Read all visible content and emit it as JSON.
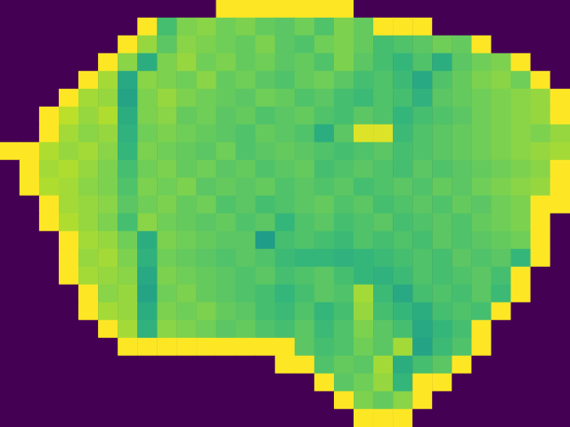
{
  "chart_data": {
    "type": "heatmap",
    "tick_labels": false,
    "color_range": [
      0,
      100
    ],
    "cells": [
      [
        0,
        0,
        0,
        0,
        0,
        0,
        0,
        0,
        0,
        0,
        0,
        100,
        100,
        100,
        100,
        100,
        100,
        100,
        0,
        0,
        0,
        0,
        0,
        0,
        0,
        0,
        0,
        0,
        0
      ],
      [
        0,
        0,
        0,
        0,
        0,
        0,
        0,
        100,
        70,
        80,
        82,
        78,
        80,
        76,
        74,
        78,
        72,
        80,
        76,
        100,
        100,
        100,
        0,
        0,
        0,
        0,
        0,
        0,
        0
      ],
      [
        0,
        0,
        0,
        0,
        0,
        0,
        100,
        84,
        74,
        82,
        80,
        78,
        76,
        80,
        74,
        72,
        78,
        80,
        76,
        70,
        72,
        74,
        78,
        76,
        100,
        0,
        0,
        0,
        0
      ],
      [
        0,
        0,
        0,
        0,
        0,
        100,
        82,
        62,
        80,
        84,
        78,
        80,
        76,
        78,
        74,
        76,
        72,
        80,
        74,
        70,
        66,
        72,
        62,
        74,
        78,
        80,
        100,
        0,
        0
      ],
      [
        0,
        0,
        0,
        0,
        100,
        86,
        60,
        82,
        80,
        78,
        82,
        76,
        78,
        74,
        72,
        76,
        78,
        74,
        70,
        72,
        68,
        60,
        72,
        76,
        80,
        82,
        78,
        100,
        0
      ],
      [
        0,
        0,
        0,
        100,
        86,
        84,
        58,
        80,
        84,
        80,
        78,
        76,
        74,
        78,
        76,
        72,
        74,
        70,
        68,
        72,
        70,
        64,
        74,
        76,
        78,
        80,
        82,
        84,
        100
      ],
      [
        0,
        0,
        100,
        90,
        84,
        88,
        62,
        80,
        82,
        76,
        78,
        74,
        76,
        72,
        74,
        76,
        72,
        70,
        74,
        72,
        66,
        70,
        72,
        74,
        78,
        80,
        82,
        84,
        100
      ],
      [
        0,
        0,
        100,
        86,
        82,
        84,
        64,
        78,
        80,
        78,
        76,
        74,
        72,
        76,
        74,
        72,
        62,
        74,
        95,
        95,
        68,
        72,
        74,
        76,
        78,
        80,
        82,
        80,
        84
      ],
      [
        100,
        100,
        88,
        84,
        86,
        82,
        66,
        80,
        78,
        76,
        74,
        78,
        72,
        74,
        76,
        74,
        72,
        70,
        72,
        74,
        70,
        72,
        74,
        76,
        78,
        80,
        82,
        84,
        86
      ],
      [
        0,
        100,
        86,
        88,
        84,
        80,
        70,
        78,
        80,
        76,
        78,
        74,
        76,
        72,
        74,
        76,
        70,
        72,
        74,
        72,
        70,
        74,
        72,
        74,
        76,
        78,
        80,
        82,
        100
      ],
      [
        0,
        100,
        88,
        86,
        82,
        80,
        72,
        80,
        78,
        80,
        74,
        76,
        74,
        76,
        72,
        74,
        72,
        74,
        70,
        72,
        74,
        72,
        76,
        74,
        78,
        80,
        82,
        84,
        100
      ],
      [
        0,
        0,
        100,
        86,
        84,
        82,
        74,
        78,
        80,
        76,
        78,
        72,
        74,
        70,
        72,
        74,
        76,
        72,
        74,
        70,
        72,
        74,
        72,
        76,
        74,
        78,
        80,
        100,
        100
      ],
      [
        0,
        0,
        100,
        88,
        84,
        80,
        70,
        82,
        78,
        76,
        74,
        76,
        72,
        74,
        66,
        72,
        74,
        70,
        72,
        74,
        70,
        72,
        74,
        72,
        76,
        78,
        80,
        100,
        0
      ],
      [
        0,
        0,
        0,
        100,
        86,
        84,
        78,
        62,
        80,
        78,
        76,
        74,
        74,
        55,
        70,
        72,
        70,
        68,
        72,
        70,
        72,
        70,
        74,
        72,
        74,
        76,
        78,
        100,
        0
      ],
      [
        0,
        0,
        0,
        100,
        84,
        86,
        80,
        64,
        78,
        76,
        74,
        72,
        74,
        72,
        68,
        66,
        66,
        64,
        66,
        68,
        70,
        72,
        70,
        74,
        72,
        74,
        66,
        100,
        0
      ],
      [
        0,
        0,
        0,
        100,
        86,
        84,
        82,
        60,
        80,
        78,
        76,
        74,
        72,
        74,
        70,
        72,
        74,
        70,
        66,
        64,
        68,
        72,
        70,
        72,
        74,
        70,
        100,
        0,
        0
      ],
      [
        0,
        0,
        0,
        0,
        100,
        82,
        84,
        58,
        78,
        80,
        76,
        74,
        72,
        70,
        66,
        70,
        74,
        72,
        86,
        68,
        60,
        70,
        72,
        70,
        74,
        68,
        100,
        0,
        0
      ],
      [
        0,
        0,
        0,
        0,
        100,
        86,
        84,
        62,
        80,
        78,
        80,
        76,
        74,
        70,
        68,
        72,
        66,
        70,
        84,
        70,
        66,
        62,
        70,
        72,
        70,
        100,
        0,
        0,
        0
      ],
      [
        0,
        0,
        0,
        0,
        0,
        100,
        86,
        64,
        82,
        80,
        78,
        74,
        76,
        72,
        70,
        74,
        68,
        72,
        80,
        74,
        70,
        60,
        66,
        70,
        100,
        0,
        0,
        0,
        0
      ],
      [
        0,
        0,
        0,
        0,
        0,
        0,
        100,
        100,
        100,
        100,
        100,
        100,
        100,
        100,
        100,
        74,
        70,
        72,
        78,
        74,
        86,
        58,
        68,
        72,
        100,
        0,
        0,
        0,
        0
      ],
      [
        0,
        0,
        0,
        0,
        0,
        0,
        0,
        0,
        0,
        0,
        0,
        0,
        0,
        0,
        100,
        100,
        72,
        76,
        74,
        86,
        62,
        70,
        74,
        100,
        0,
        0,
        0,
        0,
        0
      ],
      [
        0,
        0,
        0,
        0,
        0,
        0,
        0,
        0,
        0,
        0,
        0,
        0,
        0,
        0,
        0,
        0,
        100,
        74,
        78,
        84,
        66,
        100,
        100,
        0,
        0,
        0,
        0,
        0,
        0
      ],
      [
        0,
        0,
        0,
        0,
        0,
        0,
        0,
        0,
        0,
        0,
        0,
        0,
        0,
        0,
        0,
        0,
        0,
        100,
        80,
        76,
        82,
        100,
        0,
        0,
        0,
        0,
        0,
        0,
        0
      ],
      [
        0,
        0,
        0,
        0,
        0,
        0,
        0,
        0,
        0,
        0,
        0,
        0,
        0,
        0,
        0,
        0,
        0,
        0,
        100,
        100,
        100,
        0,
        0,
        0,
        0,
        0,
        0,
        0,
        0
      ]
    ]
  }
}
